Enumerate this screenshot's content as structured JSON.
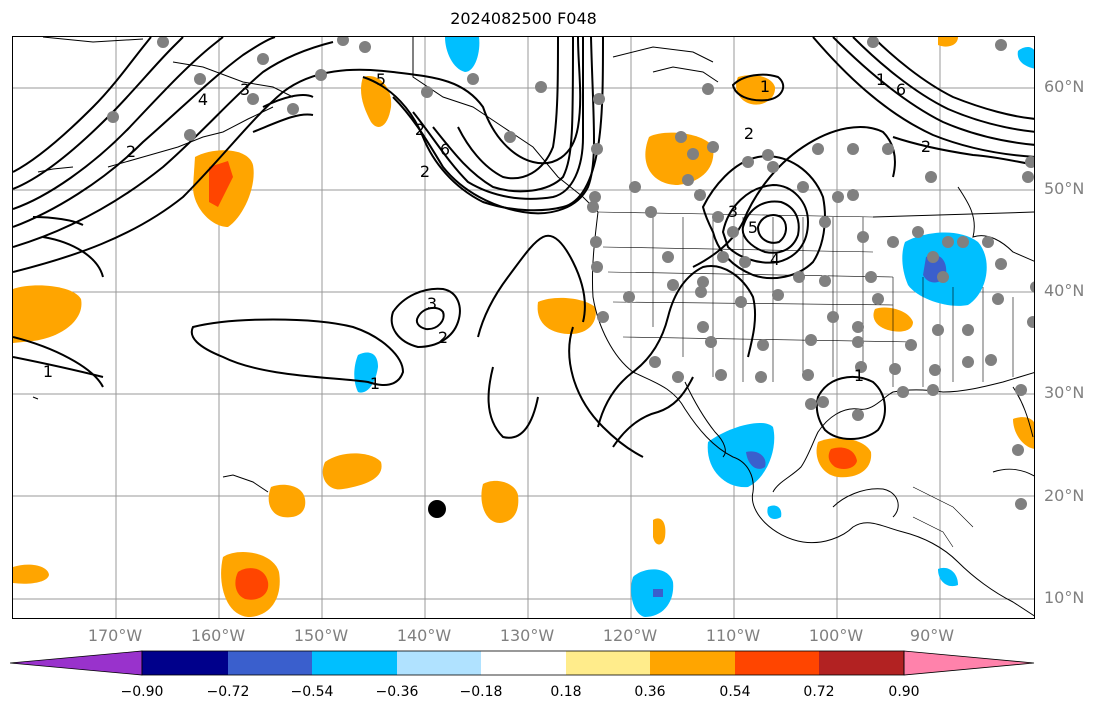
{
  "title": "2024082500 F048",
  "lon_labels": [
    "170°W",
    "160°W",
    "150°W",
    "140°W",
    "130°W",
    "120°W",
    "110°W",
    "100°W",
    "90°W"
  ],
  "lat_labels": [
    "60°N",
    "50°N",
    "40°N",
    "30°N",
    "20°N",
    "10°N"
  ],
  "colorbar": {
    "ticks": [
      "−0.90",
      "−0.72",
      "−0.54",
      "−0.36",
      "−0.18",
      "0.18",
      "0.36",
      "0.54",
      "0.72",
      "0.90"
    ],
    "colors": [
      "#9932cc",
      "#00008b",
      "#3a5fcd",
      "#00bfff",
      "#b0e2ff",
      "#ffffff",
      "#ffec8b",
      "#ffa500",
      "#ff4500",
      "#b22222",
      "#ff82ab"
    ]
  },
  "contour_labels": [
    "1",
    "2",
    "3",
    "4",
    "5",
    "6",
    "2",
    "1",
    "3",
    "2",
    "1",
    "2",
    "3",
    "4",
    "5",
    "1",
    "1",
    "2",
    "6",
    "2"
  ],
  "contour_levels": [
    1,
    2,
    3,
    4,
    5,
    6
  ],
  "fill_colors": {
    "orange": "#ffa500",
    "red": "#ff4500",
    "yellow": "#ffec8b",
    "cyan": "#00bfff",
    "lightblue": "#b0e2ff",
    "blue": "#3a5fcd"
  },
  "marker_colors": {
    "station": "#808080",
    "storm": "#000000"
  }
}
